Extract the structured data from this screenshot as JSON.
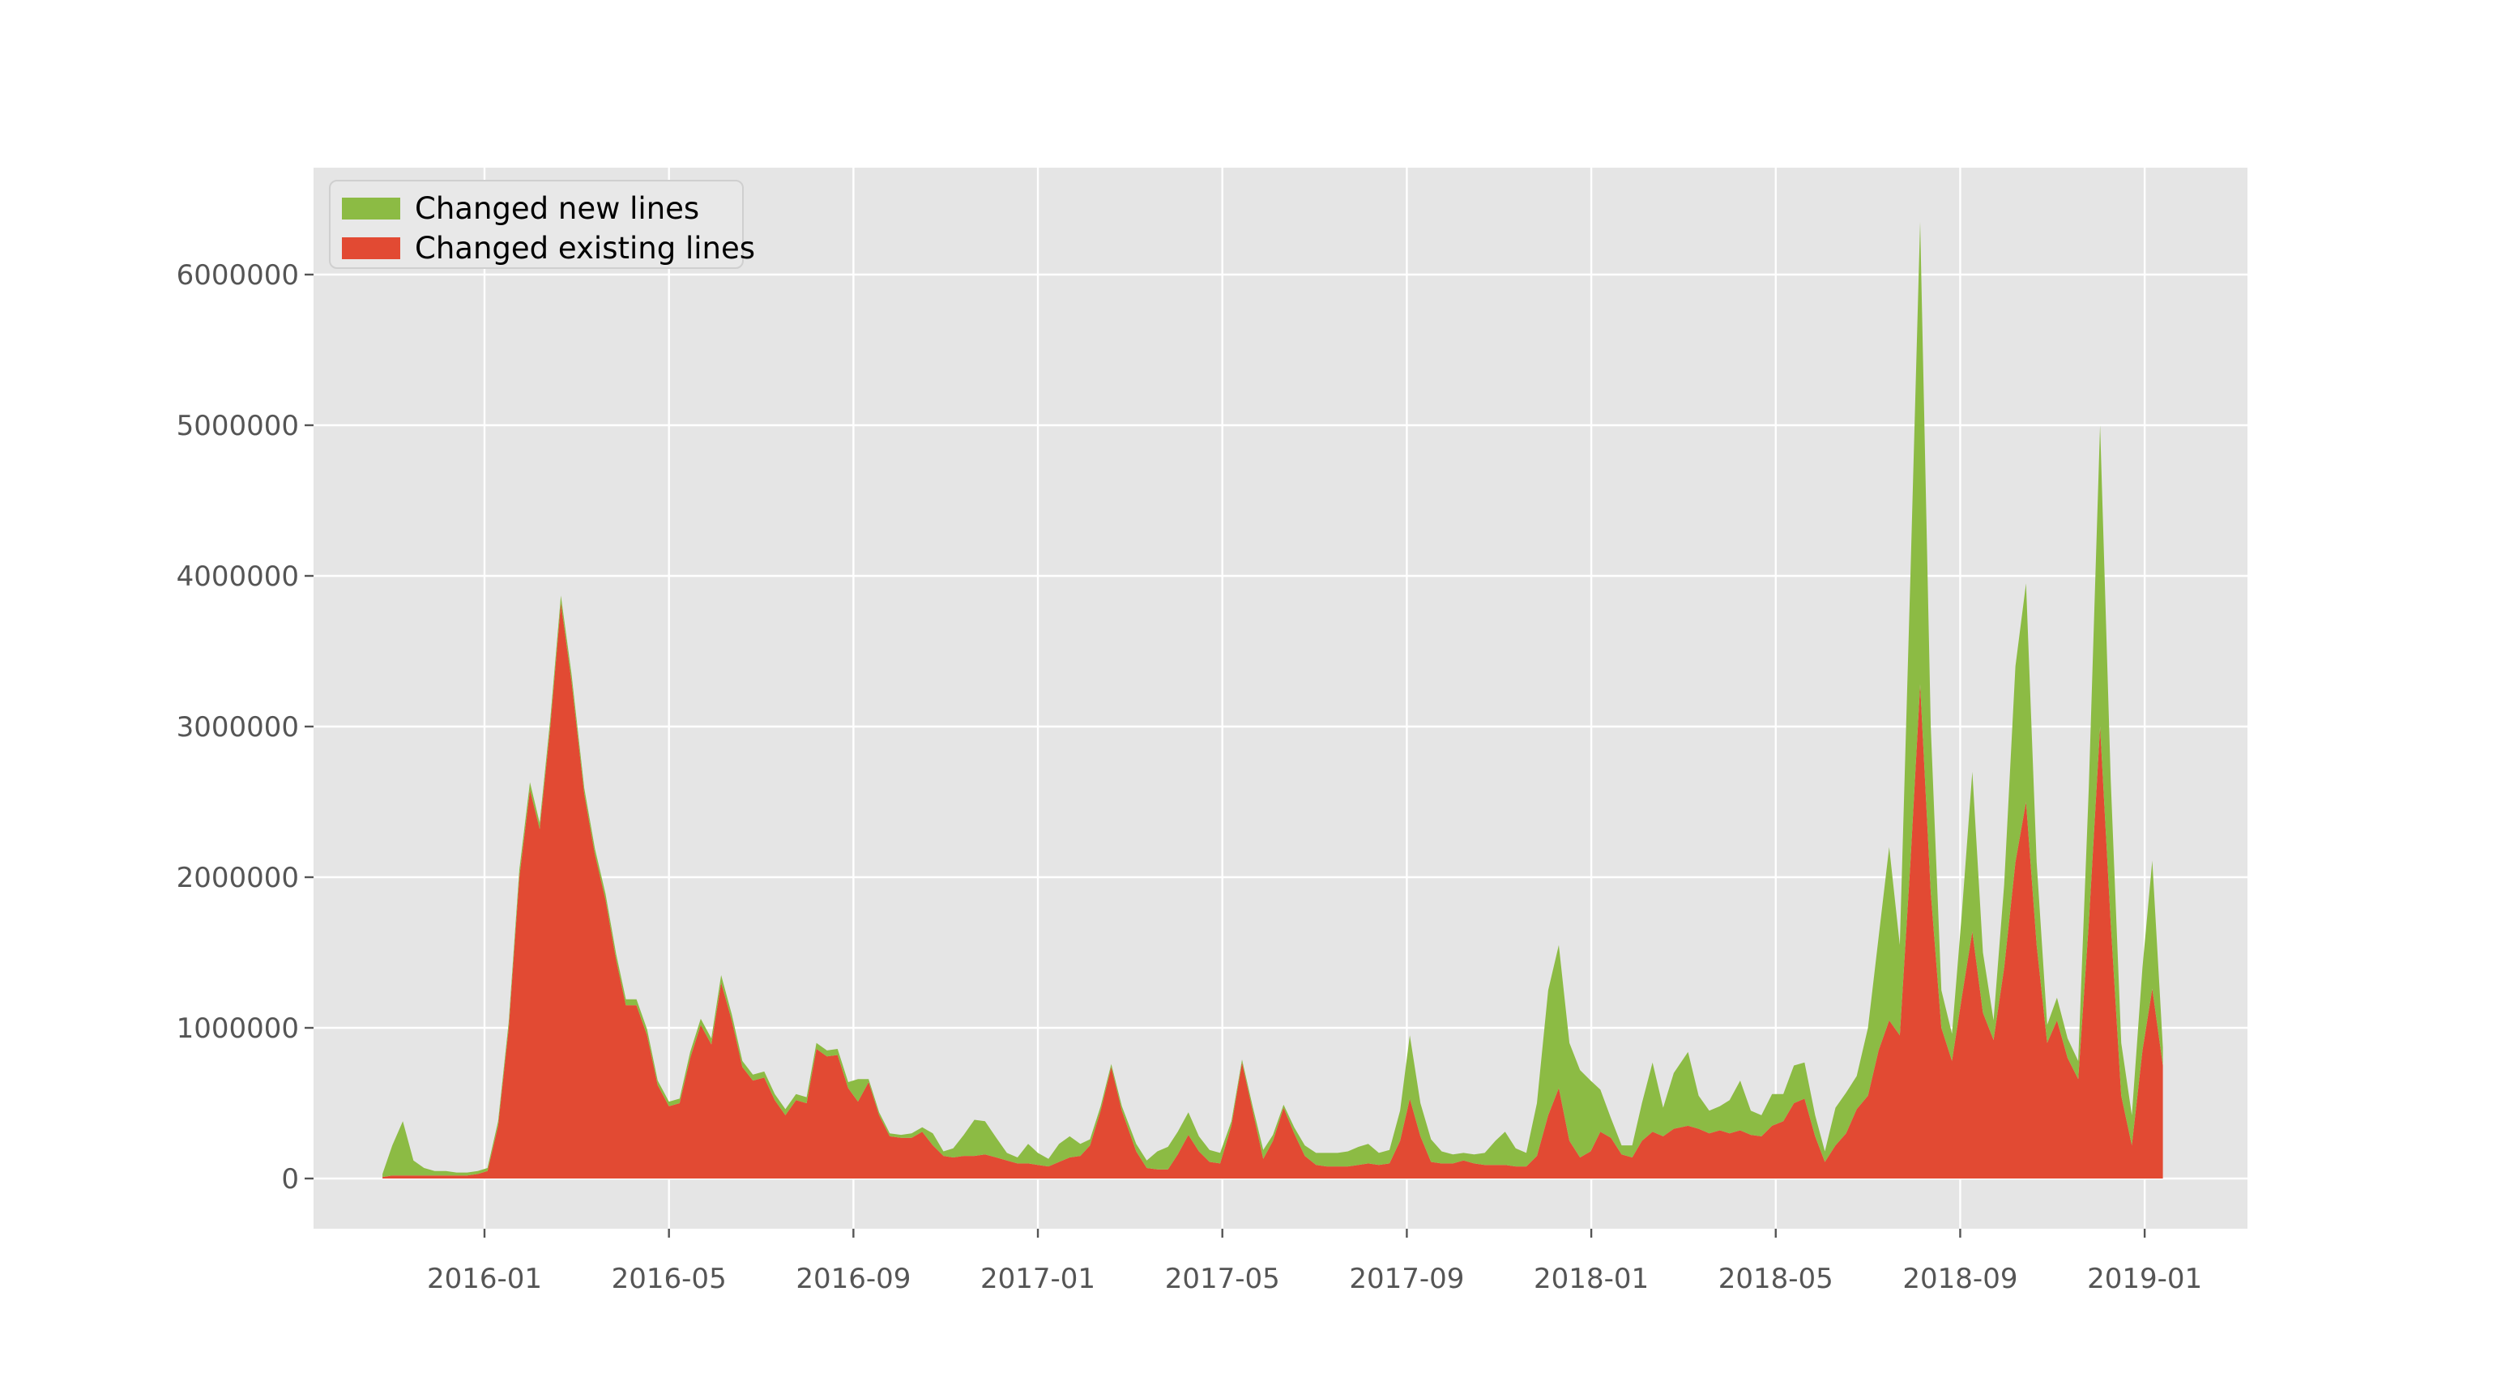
{
  "chart_data": {
    "type": "area",
    "stacked": true,
    "title": "",
    "xlabel": "",
    "ylabel": "",
    "grid": true,
    "style": {
      "figure_bg": "#ffffff",
      "plot_bg": "#e5e5e5",
      "grid_color": "#ffffff",
      "tick_label_color": "#555555",
      "tick_font_px": 34,
      "legend_position": "upper left"
    },
    "ylim": [
      -330000,
      6710000
    ],
    "y_tick_values": [
      0,
      1000000,
      2000000,
      3000000,
      4000000,
      5000000,
      6000000
    ],
    "y_tick_labels": [
      "0",
      "1000000",
      "2000000",
      "3000000",
      "4000000",
      "5000000",
      "6000000"
    ],
    "x_tick_labels": [
      "2016-01",
      "2016-05",
      "2016-09",
      "2017-01",
      "2017-05",
      "2017-09",
      "2018-01",
      "2018-05",
      "2018-09",
      "2019-01"
    ],
    "legend": {
      "entries": [
        {
          "label": "Changed new lines",
          "color": "#8cbb44"
        },
        {
          "label": "Changed existing lines",
          "color": "#e24a33"
        }
      ]
    },
    "series_stack_order_bottom_to_top": [
      "Changed existing lines",
      "Changed new lines"
    ],
    "columns": [
      "week",
      "changed_existing_lines",
      "changed_new_lines"
    ],
    "points": [
      [
        "2015-10-25",
        10000,
        20000
      ],
      [
        "2015-11-01",
        20000,
        200000
      ],
      [
        "2015-11-08",
        20000,
        360000
      ],
      [
        "2015-11-15",
        20000,
        100000
      ],
      [
        "2015-11-22",
        20000,
        50000
      ],
      [
        "2015-11-29",
        20000,
        30000
      ],
      [
        "2015-12-06",
        20000,
        30000
      ],
      [
        "2015-12-13",
        20000,
        20000
      ],
      [
        "2015-12-20",
        20000,
        20000
      ],
      [
        "2015-12-27",
        30000,
        20000
      ],
      [
        "2016-01-03",
        50000,
        20000
      ],
      [
        "2016-01-10",
        350000,
        30000
      ],
      [
        "2016-01-17",
        1000000,
        40000
      ],
      [
        "2016-01-24",
        2000000,
        50000
      ],
      [
        "2016-01-31",
        2580000,
        50000
      ],
      [
        "2016-02-07",
        2320000,
        40000
      ],
      [
        "2016-02-14",
        3000000,
        50000
      ],
      [
        "2016-02-21",
        3820000,
        50000
      ],
      [
        "2016-02-28",
        3300000,
        50000
      ],
      [
        "2016-03-06",
        2550000,
        40000
      ],
      [
        "2016-03-13",
        2150000,
        40000
      ],
      [
        "2016-03-20",
        1850000,
        40000
      ],
      [
        "2016-03-27",
        1450000,
        40000
      ],
      [
        "2016-04-03",
        1150000,
        40000
      ],
      [
        "2016-04-10",
        1150000,
        40000
      ],
      [
        "2016-04-17",
        950000,
        40000
      ],
      [
        "2016-04-24",
        620000,
        30000
      ],
      [
        "2016-05-01",
        480000,
        30000
      ],
      [
        "2016-05-08",
        500000,
        30000
      ],
      [
        "2016-05-15",
        800000,
        40000
      ],
      [
        "2016-05-22",
        1020000,
        40000
      ],
      [
        "2016-05-29",
        890000,
        40000
      ],
      [
        "2016-06-05",
        1300000,
        50000
      ],
      [
        "2016-06-12",
        1050000,
        40000
      ],
      [
        "2016-06-19",
        740000,
        40000
      ],
      [
        "2016-06-26",
        650000,
        40000
      ],
      [
        "2016-07-03",
        670000,
        40000
      ],
      [
        "2016-07-10",
        520000,
        40000
      ],
      [
        "2016-07-17",
        420000,
        40000
      ],
      [
        "2016-07-24",
        520000,
        40000
      ],
      [
        "2016-07-31",
        500000,
        40000
      ],
      [
        "2016-08-07",
        860000,
        40000
      ],
      [
        "2016-08-14",
        810000,
        40000
      ],
      [
        "2016-08-21",
        820000,
        40000
      ],
      [
        "2016-08-28",
        600000,
        40000
      ],
      [
        "2016-09-04",
        510000,
        150000
      ],
      [
        "2016-09-11",
        640000,
        20000
      ],
      [
        "2016-09-18",
        420000,
        20000
      ],
      [
        "2016-09-25",
        280000,
        20000
      ],
      [
        "2016-10-02",
        270000,
        20000
      ],
      [
        "2016-10-09",
        270000,
        30000
      ],
      [
        "2016-10-16",
        310000,
        30000
      ],
      [
        "2016-10-23",
        220000,
        80000
      ],
      [
        "2016-10-30",
        150000,
        30000
      ],
      [
        "2016-11-06",
        140000,
        60000
      ],
      [
        "2016-11-13",
        150000,
        140000
      ],
      [
        "2016-11-20",
        150000,
        240000
      ],
      [
        "2016-11-27",
        160000,
        220000
      ],
      [
        "2016-12-04",
        140000,
        130000
      ],
      [
        "2016-12-11",
        120000,
        50000
      ],
      [
        "2016-12-18",
        100000,
        40000
      ],
      [
        "2016-12-25",
        100000,
        130000
      ],
      [
        "2017-01-01",
        90000,
        80000
      ],
      [
        "2017-01-08",
        80000,
        50000
      ],
      [
        "2017-01-15",
        110000,
        120000
      ],
      [
        "2017-01-22",
        140000,
        140000
      ],
      [
        "2017-01-29",
        150000,
        80000
      ],
      [
        "2017-02-05",
        220000,
        40000
      ],
      [
        "2017-02-12",
        450000,
        30000
      ],
      [
        "2017-02-19",
        740000,
        20000
      ],
      [
        "2017-02-26",
        450000,
        30000
      ],
      [
        "2017-03-05",
        180000,
        50000
      ],
      [
        "2017-03-12",
        70000,
        50000
      ],
      [
        "2017-03-19",
        60000,
        120000
      ],
      [
        "2017-03-26",
        60000,
        150000
      ],
      [
        "2017-04-02",
        160000,
        150000
      ],
      [
        "2017-04-09",
        290000,
        150000
      ],
      [
        "2017-04-16",
        180000,
        100000
      ],
      [
        "2017-04-23",
        110000,
        80000
      ],
      [
        "2017-04-30",
        100000,
        70000
      ],
      [
        "2017-05-07",
        350000,
        30000
      ],
      [
        "2017-05-14",
        770000,
        20000
      ],
      [
        "2017-05-21",
        450000,
        30000
      ],
      [
        "2017-05-28",
        130000,
        60000
      ],
      [
        "2017-06-04",
        250000,
        40000
      ],
      [
        "2017-06-11",
        470000,
        20000
      ],
      [
        "2017-06-18",
        300000,
        40000
      ],
      [
        "2017-06-25",
        150000,
        70000
      ],
      [
        "2017-07-02",
        90000,
        80000
      ],
      [
        "2017-07-09",
        80000,
        90000
      ],
      [
        "2017-07-16",
        80000,
        90000
      ],
      [
        "2017-07-23",
        80000,
        100000
      ],
      [
        "2017-07-30",
        90000,
        120000
      ],
      [
        "2017-08-06",
        100000,
        130000
      ],
      [
        "2017-08-13",
        90000,
        80000
      ],
      [
        "2017-08-20",
        100000,
        90000
      ],
      [
        "2017-08-27",
        250000,
        200000
      ],
      [
        "2017-09-03",
        530000,
        420000
      ],
      [
        "2017-09-10",
        280000,
        220000
      ],
      [
        "2017-09-17",
        110000,
        150000
      ],
      [
        "2017-09-24",
        100000,
        80000
      ],
      [
        "2017-10-01",
        100000,
        60000
      ],
      [
        "2017-10-08",
        120000,
        50000
      ],
      [
        "2017-10-15",
        100000,
        60000
      ],
      [
        "2017-10-22",
        90000,
        80000
      ],
      [
        "2017-10-29",
        90000,
        160000
      ],
      [
        "2017-11-05",
        90000,
        220000
      ],
      [
        "2017-11-12",
        80000,
        120000
      ],
      [
        "2017-11-19",
        80000,
        90000
      ],
      [
        "2017-11-26",
        150000,
        350000
      ],
      [
        "2017-12-03",
        420000,
        830000
      ],
      [
        "2017-12-10",
        600000,
        950000
      ],
      [
        "2017-12-17",
        250000,
        650000
      ],
      [
        "2017-12-24",
        140000,
        580000
      ],
      [
        "2017-12-31",
        180000,
        470000
      ],
      [
        "2018-01-07",
        310000,
        280000
      ],
      [
        "2018-01-14",
        270000,
        130000
      ],
      [
        "2018-01-21",
        160000,
        60000
      ],
      [
        "2018-01-28",
        140000,
        80000
      ],
      [
        "2018-02-04",
        250000,
        250000
      ],
      [
        "2018-02-11",
        310000,
        460000
      ],
      [
        "2018-02-18",
        280000,
        190000
      ],
      [
        "2018-02-25",
        330000,
        370000
      ],
      [
        "2018-03-04",
        350000,
        490000
      ],
      [
        "2018-03-11",
        330000,
        220000
      ],
      [
        "2018-03-18",
        300000,
        150000
      ],
      [
        "2018-03-25",
        320000,
        160000
      ],
      [
        "2018-04-01",
        300000,
        220000
      ],
      [
        "2018-04-08",
        320000,
        330000
      ],
      [
        "2018-04-15",
        290000,
        160000
      ],
      [
        "2018-04-22",
        280000,
        140000
      ],
      [
        "2018-04-29",
        350000,
        210000
      ],
      [
        "2018-05-06",
        380000,
        180000
      ],
      [
        "2018-05-13",
        500000,
        250000
      ],
      [
        "2018-05-20",
        530000,
        240000
      ],
      [
        "2018-05-27",
        280000,
        140000
      ],
      [
        "2018-06-03",
        110000,
        70000
      ],
      [
        "2018-06-10",
        220000,
        250000
      ],
      [
        "2018-06-17",
        300000,
        270000
      ],
      [
        "2018-06-24",
        460000,
        220000
      ],
      [
        "2018-07-01",
        550000,
        450000
      ],
      [
        "2018-07-08",
        850000,
        750000
      ],
      [
        "2018-07-15",
        1050000,
        1150000
      ],
      [
        "2018-07-22",
        950000,
        600000
      ],
      [
        "2018-07-29",
        2100000,
        1900000
      ],
      [
        "2018-08-05",
        3280000,
        3070000
      ],
      [
        "2018-08-12",
        1900000,
        1100000
      ],
      [
        "2018-08-19",
        1000000,
        250000
      ],
      [
        "2018-08-26",
        780000,
        180000
      ],
      [
        "2018-09-02",
        1200000,
        550000
      ],
      [
        "2018-09-09",
        1640000,
        1060000
      ],
      [
        "2018-09-16",
        1100000,
        400000
      ],
      [
        "2018-09-23",
        920000,
        130000
      ],
      [
        "2018-09-30",
        1400000,
        550000
      ],
      [
        "2018-10-07",
        2100000,
        1300000
      ],
      [
        "2018-10-14",
        2500000,
        1450000
      ],
      [
        "2018-10-21",
        1550000,
        550000
      ],
      [
        "2018-10-28",
        900000,
        120000
      ],
      [
        "2018-11-04",
        1050000,
        150000
      ],
      [
        "2018-11-11",
        800000,
        130000
      ],
      [
        "2018-11-18",
        660000,
        120000
      ],
      [
        "2018-11-25",
        1700000,
        900000
      ],
      [
        "2018-12-02",
        3000000,
        2000000
      ],
      [
        "2018-12-09",
        1700000,
        950000
      ],
      [
        "2018-12-16",
        550000,
        350000
      ],
      [
        "2018-12-23",
        220000,
        200000
      ],
      [
        "2018-12-30",
        850000,
        550000
      ],
      [
        "2019-01-06",
        1260000,
        850000
      ],
      [
        "2019-01-13",
        750000,
        120000
      ]
    ]
  }
}
